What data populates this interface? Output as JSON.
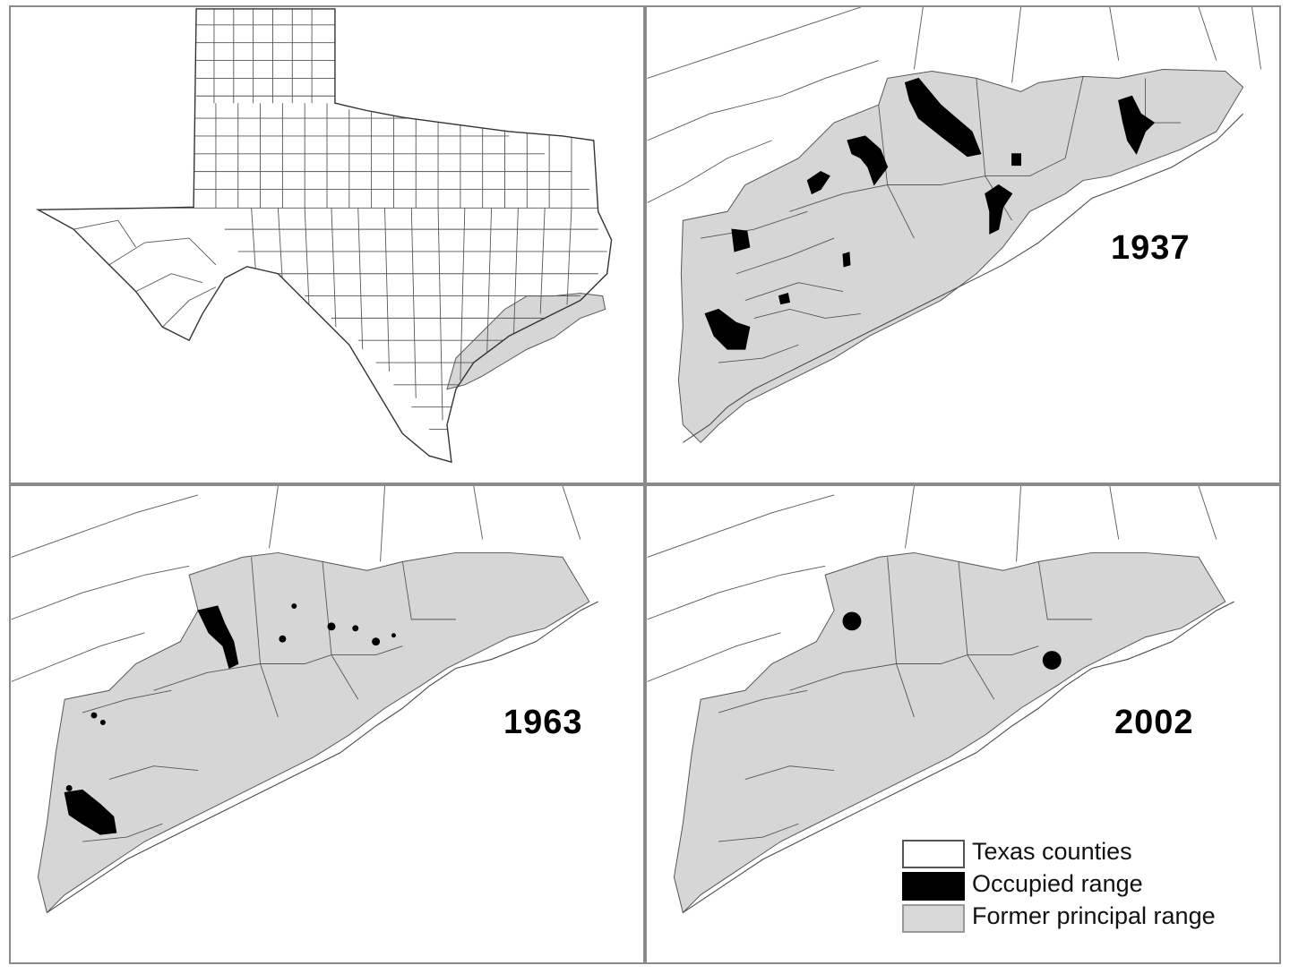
{
  "panels": {
    "overview": {},
    "p1937": {
      "year": "1937"
    },
    "p1963": {
      "year": "1963"
    },
    "p2002": {
      "year": "2002"
    }
  },
  "legend": {
    "items": [
      {
        "label": "Texas counties",
        "swatch": "white",
        "color": "#ffffff"
      },
      {
        "label": "Occupied range",
        "swatch": "black",
        "color": "#000000"
      },
      {
        "label": "Former principal range",
        "swatch": "grey",
        "color": "#d6d6d6"
      }
    ]
  }
}
